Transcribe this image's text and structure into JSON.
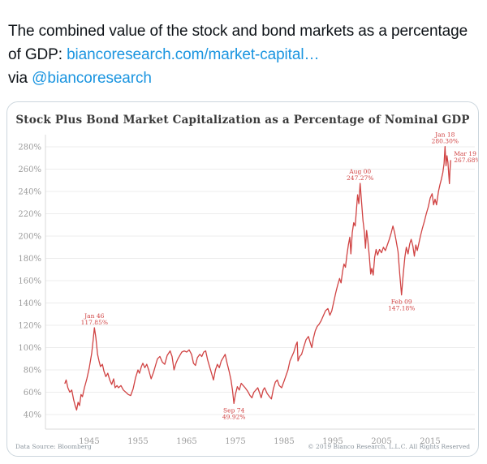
{
  "tweet": {
    "text_before_link": "The combined value of the stock and bond markets as a percentage of GDP: ",
    "link_text": "biancoresearch.com/market-capital…",
    "text_via": "via ",
    "mention": "@biancoresearch",
    "text_color": "#0f1419",
    "link_color": "#1b95e0"
  },
  "chart_card": {
    "footer_left": "Data Source: Bloomberg",
    "footer_right": "© 2019 Bianco Research, L.L.C. All Rights Reserved",
    "border_color": "#ccd6dd"
  },
  "chart_data": {
    "type": "line",
    "title": "Stock Plus Bond Market Capitalization as a Percentage of Nominal GDP",
    "xlabel": "",
    "ylabel": "",
    "grid": true,
    "legend": "none",
    "xlim": [
      1939.5,
      2020.5
    ],
    "ylim": [
      40,
      280
    ],
    "y_tick_values": [
      280,
      260,
      240,
      220,
      200,
      180,
      160,
      140,
      120,
      100,
      80,
      60,
      40
    ],
    "y_tick_suffix": "%",
    "x_tick_values": [
      1945,
      1955,
      1965,
      1975,
      1985,
      1995,
      2005,
      2015
    ],
    "line_color": "#d04343",
    "grid_color": "#ececec",
    "spine_color": "#d8d8d8",
    "tick_color": "#9b9b9b",
    "annotation_color": "#d04343",
    "annotations": [
      {
        "line1": "Jan 46",
        "line2": "117.85%",
        "year": 1946.05,
        "value": 117.85,
        "position": "above"
      },
      {
        "line1": "Sep 74",
        "line2": "49.92%",
        "year": 1974.7,
        "value": 49.92,
        "position": "below"
      },
      {
        "line1": "Aug 00",
        "line2": "247.27%",
        "year": 2000.62,
        "value": 247.27,
        "position": "above"
      },
      {
        "line1": "Feb 09",
        "line2": "147.18%",
        "year": 2009.12,
        "value": 147.18,
        "position": "below"
      },
      {
        "line1": "Jan 18",
        "line2": "280.30%",
        "year": 2018.05,
        "value": 280.3,
        "position": "above"
      },
      {
        "line1": "Mar 19",
        "line2": "267.68%",
        "year": 2019.2,
        "value": 267.68,
        "position": "right"
      }
    ],
    "series": [
      {
        "name": "Stock plus bond market capitalization as % of nominal GDP",
        "points": [
          [
            1940.0,
            68
          ],
          [
            1940.25,
            71
          ],
          [
            1940.6,
            64
          ],
          [
            1941.0,
            60
          ],
          [
            1941.4,
            62
          ],
          [
            1941.8,
            53
          ],
          [
            1942.1,
            48
          ],
          [
            1942.4,
            44
          ],
          [
            1942.7,
            51
          ],
          [
            1943.0,
            48
          ],
          [
            1943.3,
            58
          ],
          [
            1943.6,
            56
          ],
          [
            1944.0,
            64
          ],
          [
            1944.5,
            72
          ],
          [
            1945.0,
            82
          ],
          [
            1945.5,
            95
          ],
          [
            1945.8,
            107
          ],
          [
            1946.05,
            117.85
          ],
          [
            1946.35,
            109
          ],
          [
            1946.7,
            94
          ],
          [
            1947.0,
            88
          ],
          [
            1947.3,
            83
          ],
          [
            1947.7,
            85
          ],
          [
            1948.0,
            79
          ],
          [
            1948.4,
            74
          ],
          [
            1948.8,
            77
          ],
          [
            1949.2,
            71
          ],
          [
            1949.6,
            67
          ],
          [
            1950.0,
            72
          ],
          [
            1950.3,
            64
          ],
          [
            1950.7,
            66
          ],
          [
            1951.0,
            64
          ],
          [
            1951.5,
            66
          ],
          [
            1952.0,
            62
          ],
          [
            1952.5,
            60
          ],
          [
            1953.0,
            58
          ],
          [
            1953.5,
            57
          ],
          [
            1954.0,
            63
          ],
          [
            1954.5,
            73
          ],
          [
            1955.0,
            80
          ],
          [
            1955.3,
            77
          ],
          [
            1955.7,
            83
          ],
          [
            1956.0,
            86
          ],
          [
            1956.4,
            82
          ],
          [
            1956.8,
            85
          ],
          [
            1957.2,
            80
          ],
          [
            1957.7,
            72
          ],
          [
            1958.2,
            78
          ],
          [
            1958.6,
            84
          ],
          [
            1959.0,
            90
          ],
          [
            1959.5,
            92
          ],
          [
            1960.0,
            87
          ],
          [
            1960.5,
            85
          ],
          [
            1961.0,
            93
          ],
          [
            1961.6,
            97
          ],
          [
            1962.0,
            92
          ],
          [
            1962.4,
            80
          ],
          [
            1962.8,
            86
          ],
          [
            1963.2,
            90
          ],
          [
            1963.6,
            93
          ],
          [
            1964.0,
            96
          ],
          [
            1964.5,
            97
          ],
          [
            1965.0,
            96
          ],
          [
            1965.5,
            98
          ],
          [
            1966.0,
            94
          ],
          [
            1966.4,
            86
          ],
          [
            1966.8,
            84
          ],
          [
            1967.2,
            91
          ],
          [
            1967.7,
            94
          ],
          [
            1968.1,
            92
          ],
          [
            1968.5,
            96
          ],
          [
            1968.9,
            97
          ],
          [
            1969.3,
            89
          ],
          [
            1969.7,
            83
          ],
          [
            1970.1,
            77
          ],
          [
            1970.5,
            71
          ],
          [
            1970.9,
            80
          ],
          [
            1971.3,
            85
          ],
          [
            1971.7,
            82
          ],
          [
            1972.1,
            88
          ],
          [
            1972.5,
            91
          ],
          [
            1972.9,
            94
          ],
          [
            1973.3,
            86
          ],
          [
            1973.7,
            79
          ],
          [
            1974.1,
            71
          ],
          [
            1974.4,
            62
          ],
          [
            1974.7,
            49.92
          ],
          [
            1975.0,
            58
          ],
          [
            1975.4,
            65
          ],
          [
            1975.8,
            62
          ],
          [
            1976.2,
            68
          ],
          [
            1976.6,
            66
          ],
          [
            1977.0,
            64
          ],
          [
            1977.5,
            61
          ],
          [
            1978.0,
            57
          ],
          [
            1978.4,
            55
          ],
          [
            1978.8,
            60
          ],
          [
            1979.2,
            62
          ],
          [
            1979.6,
            64
          ],
          [
            1980.0,
            59
          ],
          [
            1980.3,
            55
          ],
          [
            1980.7,
            62
          ],
          [
            1981.0,
            64
          ],
          [
            1981.5,
            59
          ],
          [
            1982.0,
            56
          ],
          [
            1982.4,
            54
          ],
          [
            1982.8,
            63
          ],
          [
            1983.2,
            69
          ],
          [
            1983.6,
            71
          ],
          [
            1984.0,
            66
          ],
          [
            1984.5,
            64
          ],
          [
            1985.0,
            70
          ],
          [
            1985.4,
            75
          ],
          [
            1985.8,
            80
          ],
          [
            1986.2,
            88
          ],
          [
            1986.6,
            92
          ],
          [
            1987.0,
            96
          ],
          [
            1987.4,
            102
          ],
          [
            1987.7,
            105
          ],
          [
            1987.85,
            88
          ],
          [
            1988.2,
            92
          ],
          [
            1988.6,
            94
          ],
          [
            1989.0,
            100
          ],
          [
            1989.5,
            107
          ],
          [
            1990.0,
            110
          ],
          [
            1990.4,
            104
          ],
          [
            1990.7,
            100
          ],
          [
            1991.0,
            108
          ],
          [
            1991.4,
            115
          ],
          [
            1991.8,
            119
          ],
          [
            1992.2,
            121
          ],
          [
            1992.6,
            124
          ],
          [
            1993.0,
            128
          ],
          [
            1993.5,
            133
          ],
          [
            1994.0,
            135
          ],
          [
            1994.4,
            129
          ],
          [
            1994.8,
            133
          ],
          [
            1995.2,
            141
          ],
          [
            1995.6,
            149
          ],
          [
            1996.0,
            156
          ],
          [
            1996.4,
            162
          ],
          [
            1996.7,
            158
          ],
          [
            1997.0,
            168
          ],
          [
            1997.3,
            175
          ],
          [
            1997.6,
            172
          ],
          [
            1997.9,
            183
          ],
          [
            1998.2,
            192
          ],
          [
            1998.5,
            199
          ],
          [
            1998.72,
            184
          ],
          [
            1999.0,
            203
          ],
          [
            1999.3,
            212
          ],
          [
            1999.6,
            209
          ],
          [
            1999.9,
            226
          ],
          [
            2000.1,
            237
          ],
          [
            2000.35,
            229
          ],
          [
            2000.62,
            247.27
          ],
          [
            2000.9,
            231
          ],
          [
            2001.2,
            214
          ],
          [
            2001.5,
            203
          ],
          [
            2001.72,
            189
          ],
          [
            2001.95,
            205
          ],
          [
            2002.2,
            196
          ],
          [
            2002.5,
            182
          ],
          [
            2002.78,
            166
          ],
          [
            2003.0,
            171
          ],
          [
            2003.3,
            165
          ],
          [
            2003.6,
            181
          ],
          [
            2003.9,
            188
          ],
          [
            2004.2,
            183
          ],
          [
            2004.6,
            188
          ],
          [
            2005.0,
            185
          ],
          [
            2005.4,
            190
          ],
          [
            2005.8,
            187
          ],
          [
            2006.2,
            192
          ],
          [
            2006.6,
            197
          ],
          [
            2007.0,
            203
          ],
          [
            2007.35,
            209
          ],
          [
            2007.7,
            203
          ],
          [
            2008.0,
            196
          ],
          [
            2008.4,
            186
          ],
          [
            2008.75,
            166
          ],
          [
            2009.12,
            147.18
          ],
          [
            2009.45,
            165
          ],
          [
            2009.8,
            181
          ],
          [
            2010.1,
            190
          ],
          [
            2010.45,
            184
          ],
          [
            2010.8,
            193
          ],
          [
            2011.1,
            197
          ],
          [
            2011.45,
            191
          ],
          [
            2011.75,
            182
          ],
          [
            2012.05,
            192
          ],
          [
            2012.35,
            187
          ],
          [
            2012.7,
            194
          ],
          [
            2013.0,
            200
          ],
          [
            2013.4,
            207
          ],
          [
            2013.8,
            213
          ],
          [
            2014.2,
            220
          ],
          [
            2014.6,
            226
          ],
          [
            2015.0,
            234
          ],
          [
            2015.4,
            238
          ],
          [
            2015.7,
            228
          ],
          [
            2016.0,
            233
          ],
          [
            2016.3,
            228
          ],
          [
            2016.7,
            240
          ],
          [
            2017.0,
            246
          ],
          [
            2017.3,
            251
          ],
          [
            2017.6,
            257
          ],
          [
            2017.85,
            265
          ],
          [
            2018.05,
            280.3
          ],
          [
            2018.25,
            263
          ],
          [
            2018.45,
            272
          ],
          [
            2018.65,
            266
          ],
          [
            2018.8,
            256
          ],
          [
            2018.95,
            247
          ],
          [
            2019.05,
            258
          ],
          [
            2019.2,
            267.68
          ]
        ]
      }
    ]
  }
}
